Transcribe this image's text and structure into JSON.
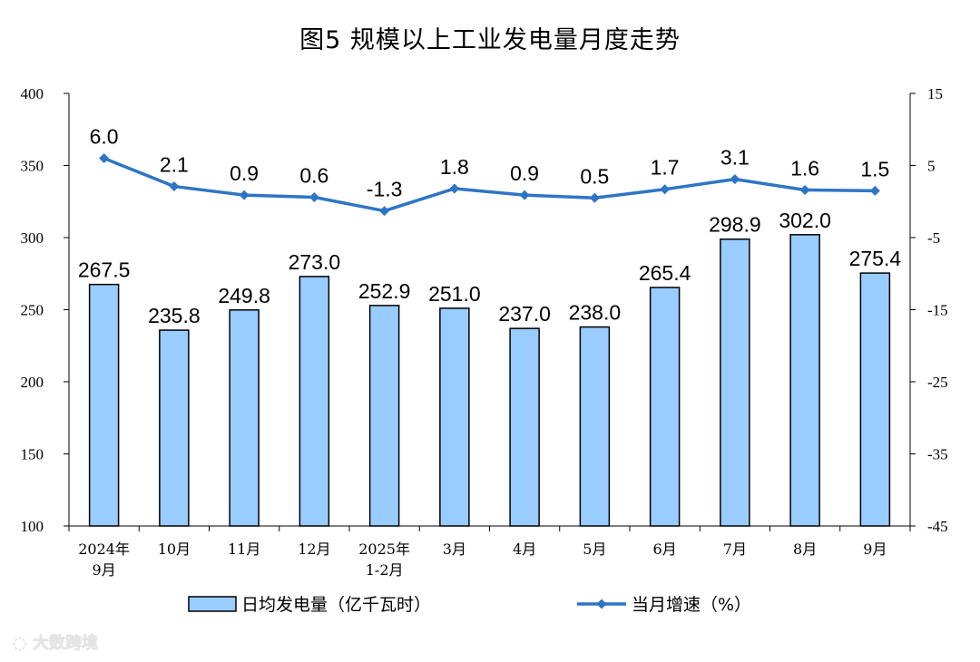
{
  "title": "图5  规模以上工业发电量月度走势",
  "watermark": "大数跨境",
  "colors": {
    "bar_fill": "#99ccff",
    "bar_stroke": "#000000",
    "line": "#2e75c6",
    "axis": "#000000"
  },
  "chart_data": {
    "type": "bar+line",
    "categories": [
      [
        "2024年",
        "9月"
      ],
      [
        "10月"
      ],
      [
        "11月"
      ],
      [
        "12月"
      ],
      [
        "2025年",
        "1-2月"
      ],
      [
        "3月"
      ],
      [
        "4月"
      ],
      [
        "5月"
      ],
      [
        "6月"
      ],
      [
        "7月"
      ],
      [
        "8月"
      ],
      [
        "9月"
      ]
    ],
    "series": [
      {
        "name": "日均发电量（亿千瓦时）",
        "type": "bar",
        "axis": "left",
        "values": [
          267.5,
          235.8,
          249.8,
          273.0,
          252.9,
          251.0,
          237.0,
          238.0,
          265.4,
          298.9,
          302.0,
          275.4
        ]
      },
      {
        "name": "当月增速（%）",
        "type": "line",
        "axis": "right",
        "values": [
          6.0,
          2.1,
          0.9,
          0.6,
          -1.3,
          1.8,
          0.9,
          0.5,
          1.7,
          3.1,
          1.6,
          1.5
        ]
      }
    ],
    "left_axis": {
      "min": 100,
      "max": 400,
      "ticks": [
        100,
        150,
        200,
        250,
        300,
        350,
        400
      ]
    },
    "right_axis": {
      "min": -45,
      "max": 15,
      "ticks": [
        -45,
        -35,
        -25,
        -15,
        -5,
        5,
        15
      ]
    },
    "legend": "bottom"
  }
}
